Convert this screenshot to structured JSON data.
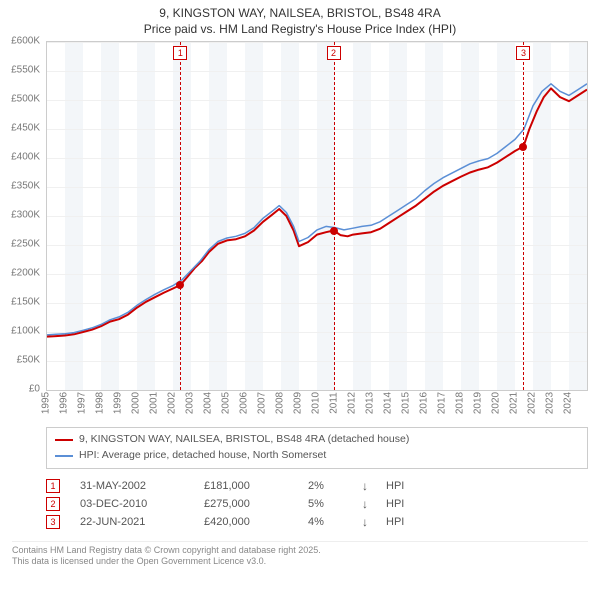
{
  "title_line1": "9, KINGSTON WAY, NAILSEA, BRISTOL, BS48 4RA",
  "title_line2": "Price paid vs. HM Land Registry's House Price Index (HPI)",
  "chart": {
    "type": "line",
    "background_color": "#ffffff",
    "grid_color": "#f0f0f0",
    "axis_color": "#cccccc",
    "tick_font_color": "#777777",
    "tick_fontsize": 10,
    "x": {
      "min": 1995,
      "max": 2025,
      "ticks": [
        1995,
        1996,
        1997,
        1998,
        1999,
        2000,
        2001,
        2002,
        2003,
        2004,
        2005,
        2006,
        2007,
        2008,
        2009,
        2010,
        2011,
        2012,
        2013,
        2014,
        2015,
        2016,
        2017,
        2018,
        2019,
        2020,
        2021,
        2022,
        2023,
        2024
      ]
    },
    "y": {
      "min": 0,
      "max": 600000,
      "ticks": [
        0,
        50000,
        100000,
        150000,
        200000,
        250000,
        300000,
        350000,
        400000,
        450000,
        500000,
        550000,
        600000
      ],
      "tick_labels": [
        "£0",
        "£50K",
        "£100K",
        "£150K",
        "£200K",
        "£250K",
        "£300K",
        "£350K",
        "£400K",
        "£450K",
        "£500K",
        "£550K",
        "£600K"
      ]
    },
    "alt_bands": {
      "color": "#eef2f7",
      "years": [
        1996,
        1998,
        2000,
        2002,
        2004,
        2006,
        2008,
        2010,
        2012,
        2014,
        2016,
        2018,
        2020,
        2022,
        2024
      ]
    },
    "series": [
      {
        "id": "price_paid",
        "label": "9, KINGSTON WAY, NAILSEA, BRISTOL, BS48 4RA (detached house)",
        "color": "#cc0000",
        "width": 2,
        "data": [
          [
            1995.0,
            92000
          ],
          [
            1995.5,
            93000
          ],
          [
            1996.0,
            94000
          ],
          [
            1996.5,
            96000
          ],
          [
            1997.0,
            100000
          ],
          [
            1997.5,
            104000
          ],
          [
            1998.0,
            110000
          ],
          [
            1998.5,
            118000
          ],
          [
            1999.0,
            122000
          ],
          [
            1999.5,
            130000
          ],
          [
            2000.0,
            142000
          ],
          [
            2000.5,
            152000
          ],
          [
            2001.0,
            160000
          ],
          [
            2001.5,
            168000
          ],
          [
            2002.0,
            175000
          ],
          [
            2002.41,
            181000
          ],
          [
            2002.8,
            195000
          ],
          [
            2003.2,
            210000
          ],
          [
            2003.6,
            222000
          ],
          [
            2004.0,
            238000
          ],
          [
            2004.5,
            252000
          ],
          [
            2005.0,
            258000
          ],
          [
            2005.5,
            260000
          ],
          [
            2006.0,
            265000
          ],
          [
            2006.5,
            275000
          ],
          [
            2007.0,
            290000
          ],
          [
            2007.5,
            302000
          ],
          [
            2007.9,
            312000
          ],
          [
            2008.3,
            300000
          ],
          [
            2008.7,
            275000
          ],
          [
            2009.0,
            248000
          ],
          [
            2009.5,
            255000
          ],
          [
            2010.0,
            268000
          ],
          [
            2010.5,
            272000
          ],
          [
            2010.92,
            275000
          ],
          [
            2011.3,
            267000
          ],
          [
            2011.7,
            265000
          ],
          [
            2012.0,
            268000
          ],
          [
            2012.5,
            270000
          ],
          [
            2013.0,
            272000
          ],
          [
            2013.5,
            278000
          ],
          [
            2014.0,
            288000
          ],
          [
            2014.5,
            298000
          ],
          [
            2015.0,
            308000
          ],
          [
            2015.5,
            318000
          ],
          [
            2016.0,
            330000
          ],
          [
            2016.5,
            342000
          ],
          [
            2017.0,
            352000
          ],
          [
            2017.5,
            360000
          ],
          [
            2018.0,
            368000
          ],
          [
            2018.5,
            375000
          ],
          [
            2019.0,
            380000
          ],
          [
            2019.5,
            384000
          ],
          [
            2020.0,
            392000
          ],
          [
            2020.5,
            402000
          ],
          [
            2021.0,
            412000
          ],
          [
            2021.47,
            420000
          ],
          [
            2021.8,
            450000
          ],
          [
            2022.2,
            480000
          ],
          [
            2022.6,
            505000
          ],
          [
            2023.0,
            520000
          ],
          [
            2023.5,
            505000
          ],
          [
            2024.0,
            498000
          ],
          [
            2024.5,
            508000
          ],
          [
            2025.0,
            518000
          ]
        ]
      },
      {
        "id": "hpi",
        "label": "HPI: Average price, detached house, North Somerset",
        "color": "#5b8fd6",
        "width": 1.5,
        "data": [
          [
            1995.0,
            95000
          ],
          [
            1995.5,
            96000
          ],
          [
            1996.0,
            97000
          ],
          [
            1996.5,
            99000
          ],
          [
            1997.0,
            103000
          ],
          [
            1997.5,
            107000
          ],
          [
            1998.0,
            113000
          ],
          [
            1998.5,
            121000
          ],
          [
            1999.0,
            126000
          ],
          [
            1999.5,
            134000
          ],
          [
            2000.0,
            146000
          ],
          [
            2000.5,
            156000
          ],
          [
            2001.0,
            165000
          ],
          [
            2001.5,
            173000
          ],
          [
            2002.0,
            180000
          ],
          [
            2002.5,
            190000
          ],
          [
            2003.0,
            206000
          ],
          [
            2003.5,
            222000
          ],
          [
            2004.0,
            242000
          ],
          [
            2004.5,
            256000
          ],
          [
            2005.0,
            262000
          ],
          [
            2005.5,
            265000
          ],
          [
            2006.0,
            270000
          ],
          [
            2006.5,
            280000
          ],
          [
            2007.0,
            296000
          ],
          [
            2007.5,
            308000
          ],
          [
            2007.9,
            318000
          ],
          [
            2008.3,
            306000
          ],
          [
            2008.7,
            282000
          ],
          [
            2009.0,
            256000
          ],
          [
            2009.5,
            263000
          ],
          [
            2010.0,
            276000
          ],
          [
            2010.5,
            282000
          ],
          [
            2011.0,
            280000
          ],
          [
            2011.5,
            276000
          ],
          [
            2012.0,
            279000
          ],
          [
            2012.5,
            282000
          ],
          [
            2013.0,
            284000
          ],
          [
            2013.5,
            290000
          ],
          [
            2014.0,
            300000
          ],
          [
            2014.5,
            310000
          ],
          [
            2015.0,
            320000
          ],
          [
            2015.5,
            330000
          ],
          [
            2016.0,
            344000
          ],
          [
            2016.5,
            356000
          ],
          [
            2017.0,
            366000
          ],
          [
            2017.5,
            374000
          ],
          [
            2018.0,
            382000
          ],
          [
            2018.5,
            390000
          ],
          [
            2019.0,
            395000
          ],
          [
            2019.5,
            399000
          ],
          [
            2020.0,
            408000
          ],
          [
            2020.5,
            420000
          ],
          [
            2021.0,
            432000
          ],
          [
            2021.5,
            450000
          ],
          [
            2022.0,
            490000
          ],
          [
            2022.5,
            515000
          ],
          [
            2023.0,
            528000
          ],
          [
            2023.5,
            515000
          ],
          [
            2024.0,
            508000
          ],
          [
            2024.5,
            518000
          ],
          [
            2025.0,
            528000
          ]
        ]
      }
    ],
    "events": [
      {
        "n": "1",
        "year": 2002.41,
        "value": 181000,
        "color": "#cc0000"
      },
      {
        "n": "2",
        "year": 2010.92,
        "value": 275000,
        "color": "#cc0000"
      },
      {
        "n": "3",
        "year": 2021.47,
        "value": 420000,
        "color": "#cc0000"
      }
    ],
    "event_line_color": "#cc0000",
    "point_color": "#cc0000"
  },
  "legend": {
    "items": [
      {
        "color": "#cc0000",
        "label": "9, KINGSTON WAY, NAILSEA, BRISTOL, BS48 4RA (detached house)"
      },
      {
        "color": "#5b8fd6",
        "label": "HPI: Average price, detached house, North Somerset"
      }
    ]
  },
  "events_table": {
    "rows": [
      {
        "n": "1",
        "color": "#cc0000",
        "date": "31-MAY-2002",
        "price": "£181,000",
        "pct": "2%",
        "arrow": "↓",
        "suffix": "HPI"
      },
      {
        "n": "2",
        "color": "#cc0000",
        "date": "03-DEC-2010",
        "price": "£275,000",
        "pct": "5%",
        "arrow": "↓",
        "suffix": "HPI"
      },
      {
        "n": "3",
        "color": "#cc0000",
        "date": "22-JUN-2021",
        "price": "£420,000",
        "pct": "4%",
        "arrow": "↓",
        "suffix": "HPI"
      }
    ]
  },
  "footer_line1": "Contains HM Land Registry data © Crown copyright and database right 2025.",
  "footer_line2": "This data is licensed under the Open Government Licence v3.0."
}
